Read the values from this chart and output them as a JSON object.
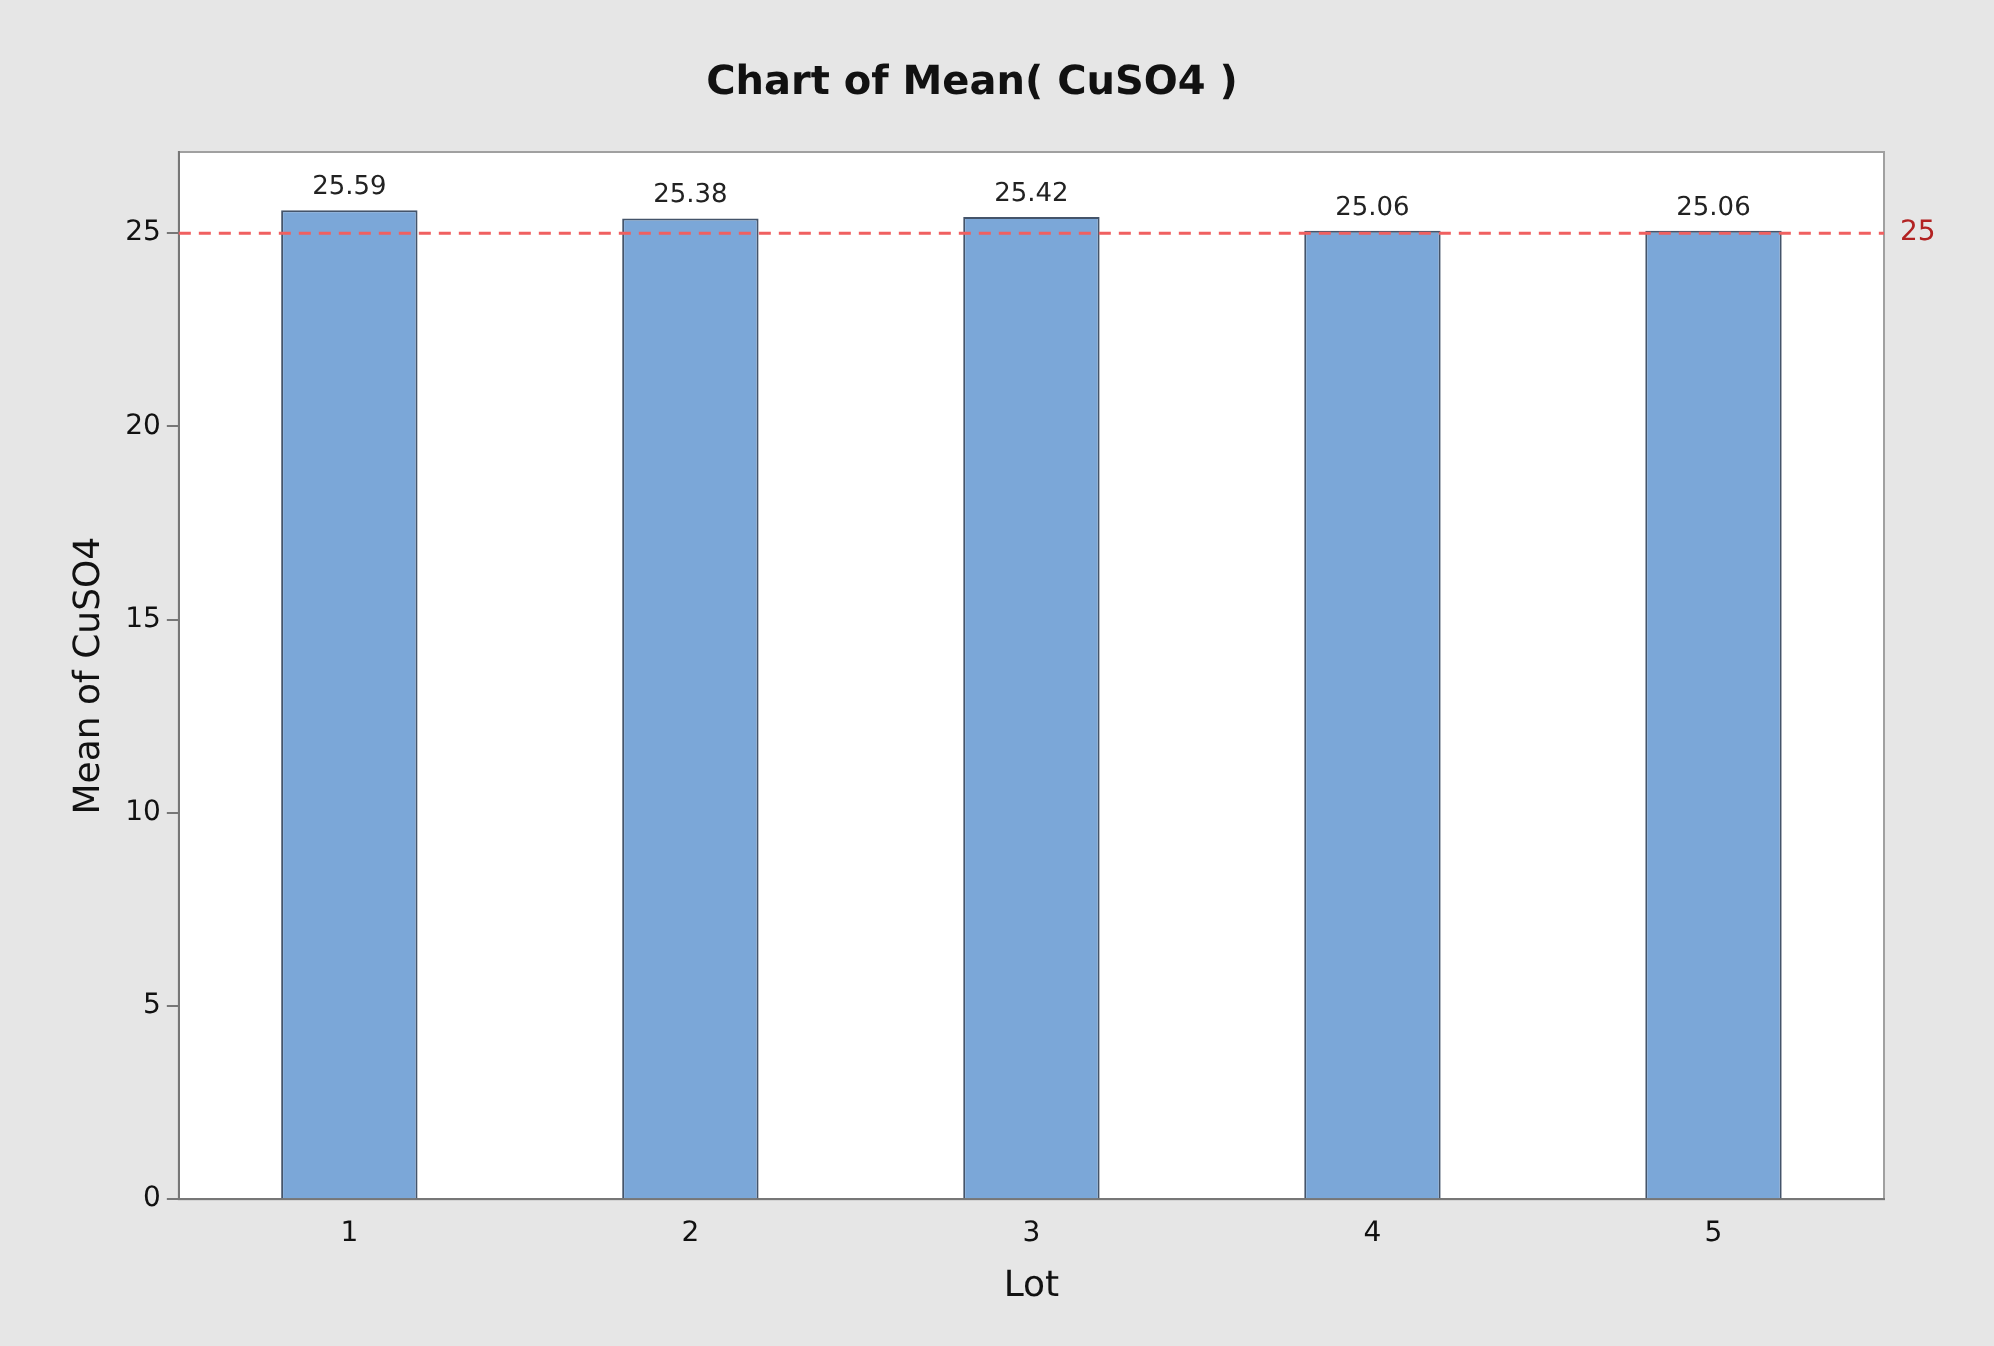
{
  "chart_data": {
    "type": "bar",
    "title": "Chart of Mean( CuSO4 )",
    "xlabel": "Lot",
    "ylabel": "Mean of CuSO4",
    "categories": [
      "1",
      "2",
      "3",
      "4",
      "5"
    ],
    "values": [
      25.59,
      25.38,
      25.42,
      25.06,
      25.06
    ],
    "color": "#7ba7d8",
    "ylim": [
      0,
      27.1
    ],
    "yticks": [
      0,
      5,
      10,
      15,
      20,
      25
    ],
    "grid": false,
    "legend": false,
    "data_labels": true,
    "ref_lines": [
      {
        "axis": "y",
        "value": 25,
        "label": "25",
        "color": "#f06060",
        "line_style": "dashed"
      }
    ]
  }
}
